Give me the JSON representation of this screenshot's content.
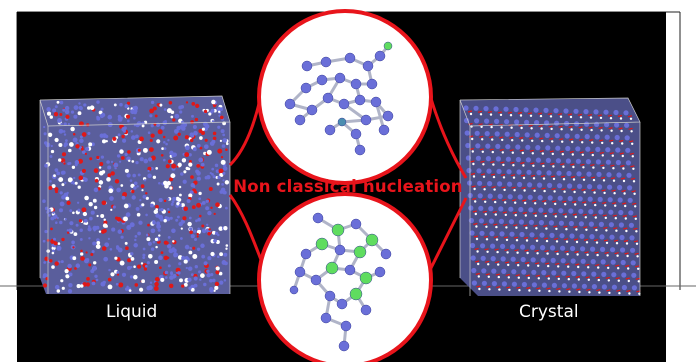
{
  "labels": {
    "liquid": "Liquid",
    "crystal": "Crystal",
    "nucleation": "Non classical  nucleation"
  },
  "colors": {
    "background": "#000000",
    "accent_red": "#e8141b",
    "atom_blue": "#6a6fd8",
    "atom_green": "#5fdc5f",
    "atom_teal": "#4a8db0",
    "atom_white": "#ffffff",
    "atom_red": "#e01818"
  },
  "icons": {
    "liquid_box": "disordered-molecular-box",
    "crystal_box": "ordered-molecular-lattice-box",
    "top_cluster": "molecular-cluster",
    "bottom_cluster": "molecular-cluster-with-green-atoms"
  }
}
